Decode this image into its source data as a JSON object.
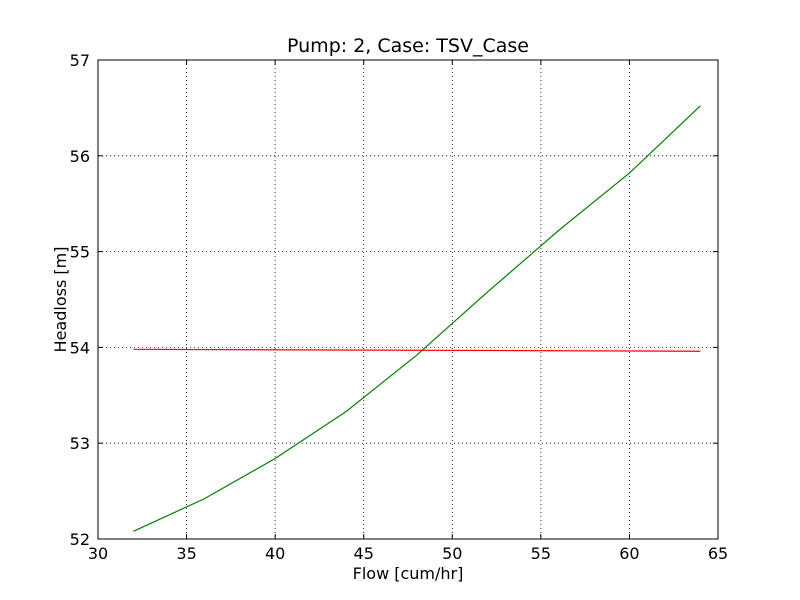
{
  "chart_data": {
    "type": "line",
    "title": "Pump: 2, Case: TSV_Case",
    "xlabel": "Flow [cum/hr]",
    "ylabel": "Headloss [m]",
    "xlim": [
      30,
      65
    ],
    "ylim": [
      52,
      57
    ],
    "xticks": [
      30,
      35,
      40,
      45,
      50,
      55,
      60,
      65
    ],
    "yticks": [
      52,
      53,
      54,
      55,
      56,
      57
    ],
    "grid": true,
    "series": [
      {
        "color": "#008000",
        "x": [
          32,
          36,
          40,
          44,
          48,
          52,
          56,
          60,
          64
        ],
        "y": [
          52.08,
          52.42,
          52.84,
          53.33,
          53.92,
          54.58,
          55.22,
          55.82,
          56.52
        ]
      },
      {
        "color": "#ff0000",
        "x": [
          32,
          64
        ],
        "y": [
          53.98,
          53.96
        ]
      }
    ]
  }
}
